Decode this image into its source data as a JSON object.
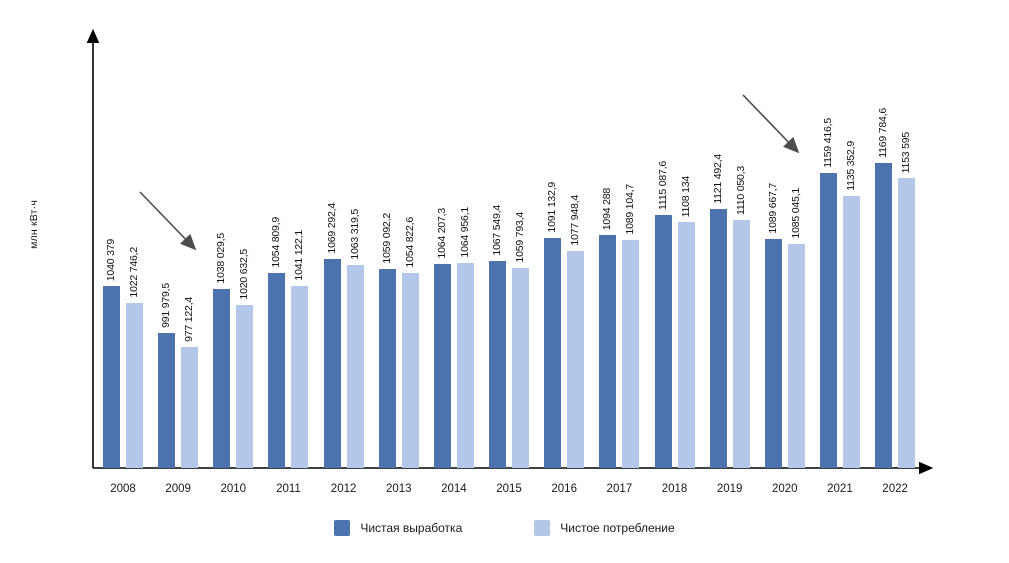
{
  "y_axis_label": "млн кВт·ч",
  "colors": {
    "net_generation": "#4C73AE",
    "net_consumption": "#B3C8E8",
    "axis": "#000000",
    "annotation_arrow": "#4d4d4d"
  },
  "legend": {
    "items": [
      {
        "label": "Чистая выработка",
        "color": "#4C73AE"
      },
      {
        "label": "Чистое потребление",
        "color": "#B3C8E8"
      }
    ]
  },
  "chart_data": {
    "type": "bar",
    "title": "",
    "xlabel": "",
    "ylabel": "млн кВт·ч",
    "categories": [
      "2008",
      "2009",
      "2010",
      "2011",
      "2012",
      "2013",
      "2014",
      "2015",
      "2016",
      "2017",
      "2018",
      "2019",
      "2020",
      "2021",
      "2022"
    ],
    "series": [
      {
        "name": "Чистая выработка",
        "color": "#4C73AE",
        "values": [
          1040379,
          991979.5,
          1038029.5,
          1054809.9,
          1069292.4,
          1059092.2,
          1064207.3,
          1067549.4,
          1091132.9,
          1094288,
          1115087.6,
          1121492.4,
          1089667.7,
          1159416.5,
          1169784.6
        ],
        "labels": [
          "1040 379",
          "991 979,5",
          "1038 029,5",
          "1054 809,9",
          "1069 292,4",
          "1059 092,2",
          "1064 207,3",
          "1067 549,4",
          "1091 132,9",
          "1094 288",
          "1115 087,6",
          "1121 492,4",
          "1089 667,7",
          "1159 416,5",
          "1169 784,6"
        ]
      },
      {
        "name": "Чистое потребление",
        "color": "#B3C8E8",
        "values": [
          1022746.2,
          977122.4,
          1020632.5,
          1041122.1,
          1063319.5,
          1054822.6,
          1064956.1,
          1059793.4,
          1077948.4,
          1089104.7,
          1108134,
          1110050.3,
          1085045.1,
          1135352.9,
          1153595
        ],
        "labels": [
          "1022 746,2",
          "977 122,4",
          "1020 632,5",
          "1041 122,1",
          "1063 319,5",
          "1054 822,6",
          "1064 956,1",
          "1059 793,4",
          "1077 948,4",
          "1089 104,7",
          "1108 134",
          "1110 050,3",
          "1085 045,1",
          "1135 352,9",
          "1153 595"
        ]
      }
    ],
    "legend_position": "bottom",
    "grid": false,
    "value_labels_rotated": true,
    "annotations": [
      {
        "shape": "arrow",
        "points_at": "2010"
      },
      {
        "shape": "arrow",
        "points_at": "2021"
      }
    ]
  }
}
